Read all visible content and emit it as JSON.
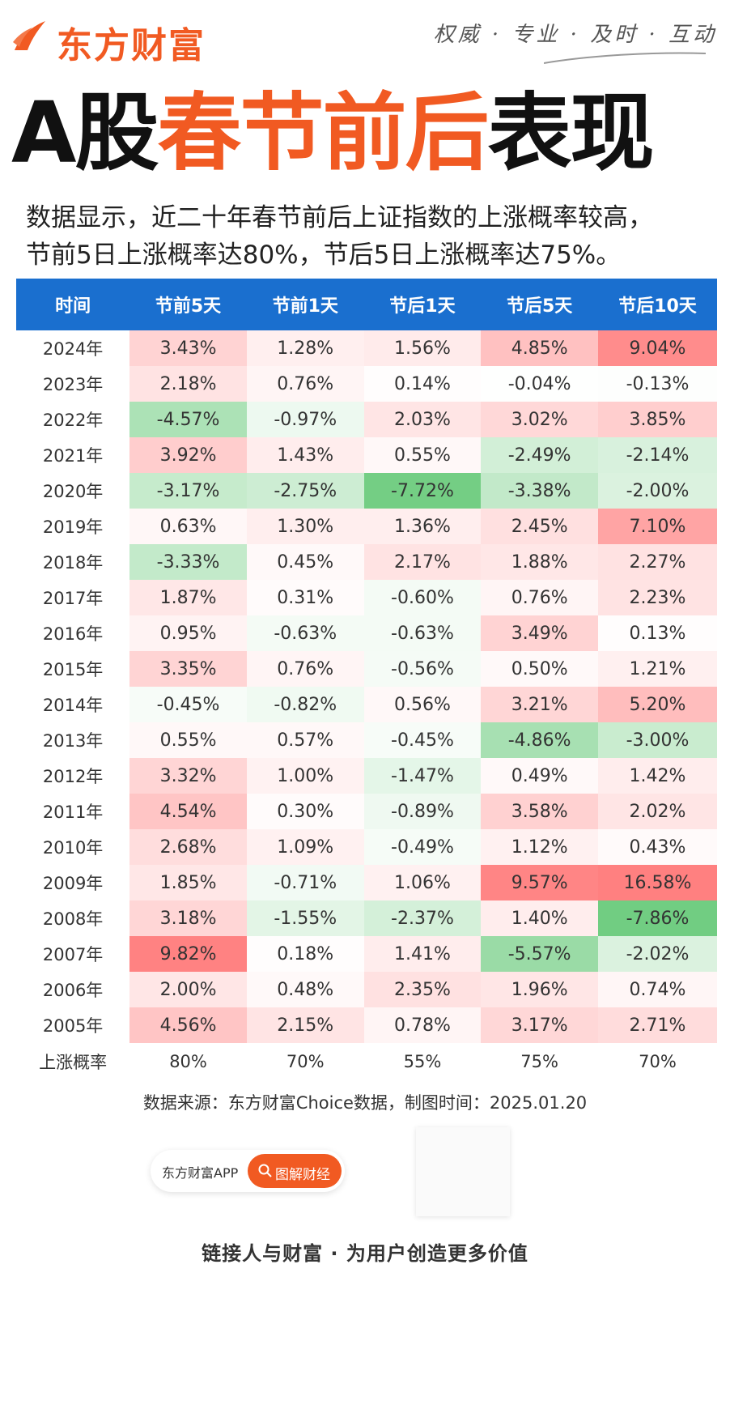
{
  "brand": {
    "name": "东方财富",
    "slogan": "权威 · 专业 · 及时 · 互动",
    "accent_color": "#f15a22",
    "header_color": "#1a6fcf"
  },
  "title": {
    "part1": "A股",
    "part2": "春节前后",
    "part3": "表现"
  },
  "subtitle": {
    "line1": "数据显示，近二十年春节前后上证指数的上涨概率较高，",
    "line2": "节前5日上涨概率达80%，节后5日上涨概率达75%。"
  },
  "table": {
    "headers": [
      "时间",
      "节前5天",
      "节前1天",
      "节后1天",
      "节后5天",
      "节后10天"
    ],
    "rows": [
      {
        "year": "2024年",
        "values": [
          "3.43%",
          "1.28%",
          "1.56%",
          "4.85%",
          "9.04%"
        ]
      },
      {
        "year": "2023年",
        "values": [
          "2.18%",
          "0.76%",
          "0.14%",
          "-0.04%",
          "-0.13%"
        ]
      },
      {
        "year": "2022年",
        "values": [
          "-4.57%",
          "-0.97%",
          "2.03%",
          "3.02%",
          "3.85%"
        ]
      },
      {
        "year": "2021年",
        "values": [
          "3.92%",
          "1.43%",
          "0.55%",
          "-2.49%",
          "-2.14%"
        ]
      },
      {
        "year": "2020年",
        "values": [
          "-3.17%",
          "-2.75%",
          "-7.72%",
          "-3.38%",
          "-2.00%"
        ]
      },
      {
        "year": "2019年",
        "values": [
          "0.63%",
          "1.30%",
          "1.36%",
          "2.45%",
          "7.10%"
        ]
      },
      {
        "year": "2018年",
        "values": [
          "-3.33%",
          "0.45%",
          "2.17%",
          "1.88%",
          "2.27%"
        ]
      },
      {
        "year": "2017年",
        "values": [
          "1.87%",
          "0.31%",
          "-0.60%",
          "0.76%",
          "2.23%"
        ]
      },
      {
        "year": "2016年",
        "values": [
          "0.95%",
          "-0.63%",
          "-0.63%",
          "3.49%",
          "0.13%"
        ]
      },
      {
        "year": "2015年",
        "values": [
          "3.35%",
          "0.76%",
          "-0.56%",
          "0.50%",
          "1.21%"
        ]
      },
      {
        "year": "2014年",
        "values": [
          "-0.45%",
          "-0.82%",
          "0.56%",
          "3.21%",
          "5.20%"
        ]
      },
      {
        "year": "2013年",
        "values": [
          "0.55%",
          "0.57%",
          "-0.45%",
          "-4.86%",
          "-3.00%"
        ]
      },
      {
        "year": "2012年",
        "values": [
          "3.32%",
          "1.00%",
          "-1.47%",
          "0.49%",
          "1.42%"
        ]
      },
      {
        "year": "2011年",
        "values": [
          "4.54%",
          "0.30%",
          "-0.89%",
          "3.58%",
          "2.02%"
        ]
      },
      {
        "year": "2010年",
        "values": [
          "2.68%",
          "1.09%",
          "-0.49%",
          "1.12%",
          "0.43%"
        ]
      },
      {
        "year": "2009年",
        "values": [
          "1.85%",
          "-0.71%",
          "1.06%",
          "9.57%",
          "16.58%"
        ]
      },
      {
        "year": "2008年",
        "values": [
          "3.18%",
          "-1.55%",
          "-2.37%",
          "1.40%",
          "-7.86%"
        ]
      },
      {
        "year": "2007年",
        "values": [
          "9.82%",
          "0.18%",
          "1.41%",
          "-5.57%",
          "-2.02%"
        ]
      },
      {
        "year": "2006年",
        "values": [
          "2.00%",
          "0.48%",
          "2.35%",
          "1.96%",
          "0.74%"
        ]
      },
      {
        "year": "2005年",
        "values": [
          "4.56%",
          "2.15%",
          "0.78%",
          "3.17%",
          "2.71%"
        ]
      }
    ],
    "probability": {
      "label": "上涨概率",
      "values": [
        "80%",
        "70%",
        "55%",
        "75%",
        "70%"
      ]
    }
  },
  "source": "数据来源：东方财富Choice数据，制图时间：2025.01.20",
  "search": {
    "app_label": "东方财富APP",
    "button_label": "图解财经"
  },
  "footer": "链接人与财富 · 为用户创造更多价值"
}
